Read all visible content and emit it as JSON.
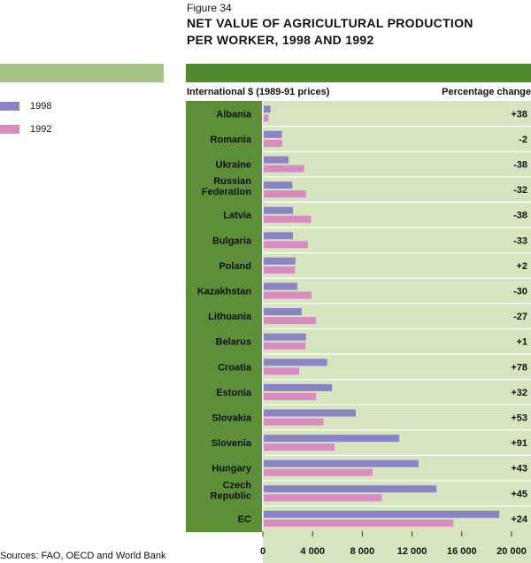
{
  "figure_label": "Figure 34",
  "title_line1": "NET VALUE OF AGRICULTURAL PRODUCTION",
  "title_line2": "PER WORKER, 1998 AND 1992",
  "units_label": "International $ (1989-91 prices)",
  "pct_header": "Percentage change",
  "source": "Sources: FAO, OECD and World Bank",
  "colors": {
    "s1998": "#8b84c4",
    "s1992": "#d98bc0",
    "plot_bg": "#d6e4c0",
    "label_bg": "#5c8f38",
    "header_bar": "#4f8a2e",
    "light_bar": "#a7c38a"
  },
  "chart_data": {
    "type": "bar",
    "orientation": "horizontal",
    "categories": [
      "Albania",
      "Romania",
      "Ukraine",
      "Russian Federation",
      "Latvia",
      "Bulgaria",
      "Poland",
      "Kazakhstan",
      "Lithuania",
      "Belarus",
      "Croatia",
      "Estonia",
      "Slovakia",
      "Slovenia",
      "Hungary",
      "Czech Republic",
      "EC"
    ],
    "series": [
      {
        "name": "1998",
        "values": [
          550,
          1450,
          2000,
          2300,
          2350,
          2350,
          2550,
          2700,
          3050,
          3400,
          5100,
          5500,
          7400,
          10900,
          12450,
          13900,
          18950
        ]
      },
      {
        "name": "1992",
        "values": [
          400,
          1480,
          3250,
          3400,
          3800,
          3550,
          2500,
          3850,
          4200,
          3350,
          2850,
          4200,
          4800,
          5700,
          8750,
          9500,
          15250
        ]
      }
    ],
    "percentage_change": [
      "+38",
      "-2",
      "-38",
      "-32",
      "-38",
      "-33",
      "+2",
      "-30",
      "-27",
      "+1",
      "+78",
      "+32",
      "+53",
      "+91",
      "+43",
      "+45",
      "+24"
    ],
    "xlim": [
      0,
      20000
    ],
    "x_ticks": [
      "0",
      "4 000",
      "8 000",
      "12 000",
      "16 000",
      "20 000"
    ],
    "grid": false,
    "legend": "left"
  }
}
